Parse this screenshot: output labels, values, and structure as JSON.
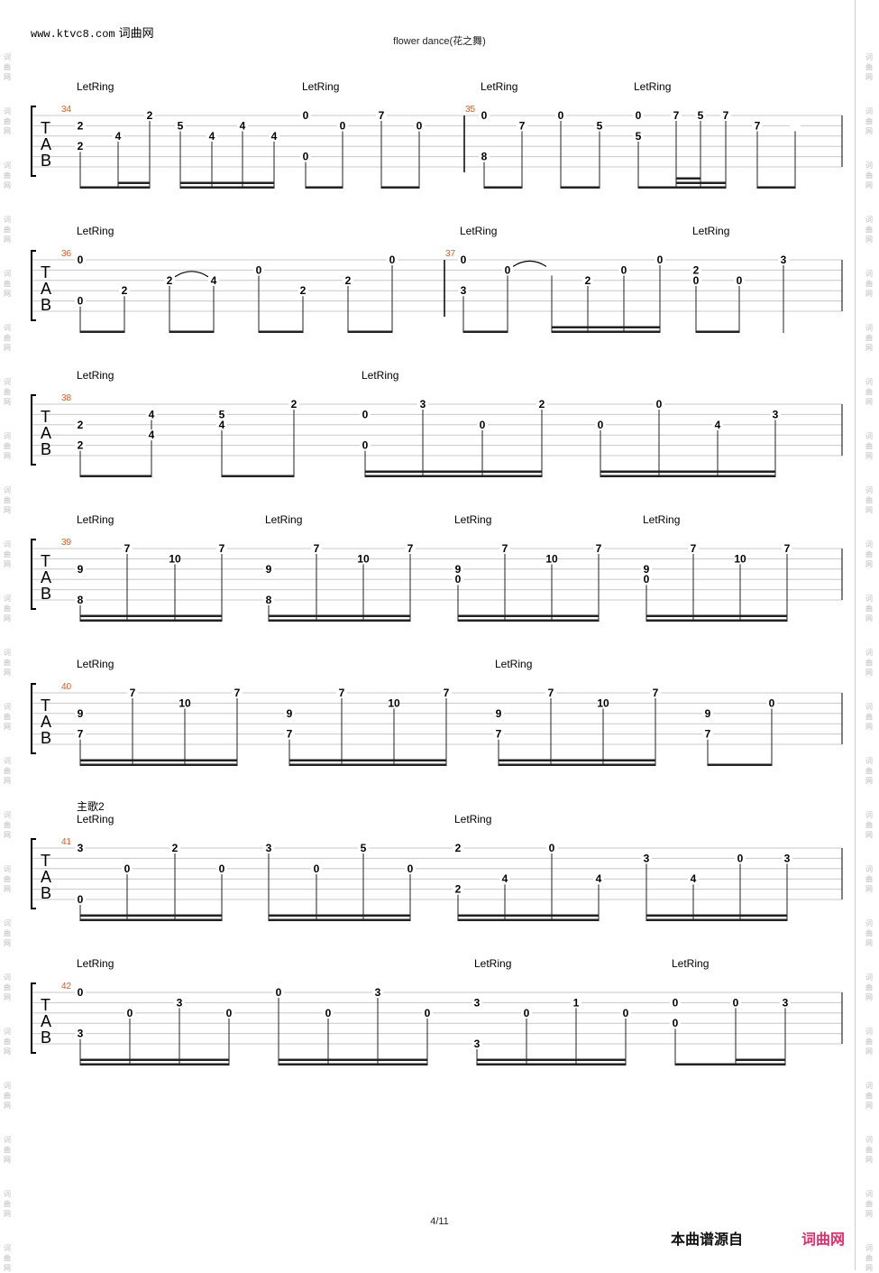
{
  "header": {
    "site": "www.ktvc8.com",
    "site_cn": "词曲网",
    "title": "flower dance(花之舞)"
  },
  "footer": {
    "page": "4/11",
    "source_label": "本曲谱源自",
    "brand": "词曲网"
  },
  "watermark": [
    "词",
    "曲",
    "网"
  ],
  "tab_clef": [
    "T",
    "A",
    "B"
  ],
  "systems": [
    {
      "measures": [
        {
          "n": "34"
        },
        {
          "n": "35"
        }
      ],
      "section": "",
      "letring": [
        "LetRing",
        "LetRing",
        "LetRing",
        "LetRing"
      ],
      "notes": [
        "2",
        "2",
        "4",
        "2",
        "5",
        "4",
        "4",
        "4",
        "0",
        "0",
        "0",
        "7",
        "0",
        "0",
        "8",
        "7",
        "0",
        "5",
        "0",
        "5",
        "7",
        "5",
        "7",
        "7"
      ]
    },
    {
      "measures": [
        {
          "n": "36"
        },
        {
          "n": "37"
        }
      ],
      "section": "",
      "letring": [
        "LetRing",
        "LetRing",
        "LetRing"
      ],
      "notes": [
        "0",
        "0",
        "2",
        "2",
        "4",
        "0",
        "2",
        "2",
        "0",
        "0",
        "3",
        "0",
        "2",
        "0",
        "0",
        "2",
        "0",
        "0",
        "3"
      ]
    },
    {
      "measures": [
        {
          "n": "38"
        }
      ],
      "section": "",
      "letring": [
        "LetRing",
        "LetRing"
      ],
      "notes": [
        "2",
        "2",
        "4",
        "4",
        "5",
        "4",
        "2",
        "0",
        "0",
        "3",
        "0",
        "2",
        "0",
        "0",
        "4",
        "3"
      ]
    },
    {
      "measures": [
        {
          "n": "39"
        }
      ],
      "section": "",
      "letring": [
        "LetRing",
        "LetRing",
        "LetRing",
        "LetRing"
      ],
      "notes": [
        "9",
        "8",
        "7",
        "10",
        "7",
        "9",
        "8",
        "7",
        "10",
        "7",
        "9",
        "0",
        "7",
        "10",
        "7",
        "9",
        "0",
        "7",
        "10",
        "7"
      ]
    },
    {
      "measures": [
        {
          "n": "40"
        }
      ],
      "section": "",
      "letring": [
        "LetRing",
        "LetRing"
      ],
      "notes": [
        "9",
        "7",
        "7",
        "10",
        "7",
        "9",
        "7",
        "7",
        "10",
        "7",
        "9",
        "7",
        "7",
        "10",
        "7",
        "9",
        "7",
        "0"
      ]
    },
    {
      "measures": [
        {
          "n": "41"
        }
      ],
      "section": "主歌2",
      "letring": [
        "LetRing",
        "LetRing"
      ],
      "notes": [
        "3",
        "0",
        "0",
        "2",
        "0",
        "3",
        "0",
        "5",
        "0",
        "2",
        "2",
        "4",
        "0",
        "4",
        "3",
        "4",
        "0",
        "3"
      ]
    },
    {
      "measures": [
        {
          "n": "42"
        }
      ],
      "section": "",
      "letring": [
        "LetRing",
        "LetRing",
        "LetRing"
      ],
      "notes": [
        "0",
        "3",
        "0",
        "3",
        "0",
        "0",
        "0",
        "3",
        "0",
        "3",
        "3",
        "0",
        "1",
        "0",
        "0",
        "0",
        "0",
        "3"
      ]
    }
  ]
}
